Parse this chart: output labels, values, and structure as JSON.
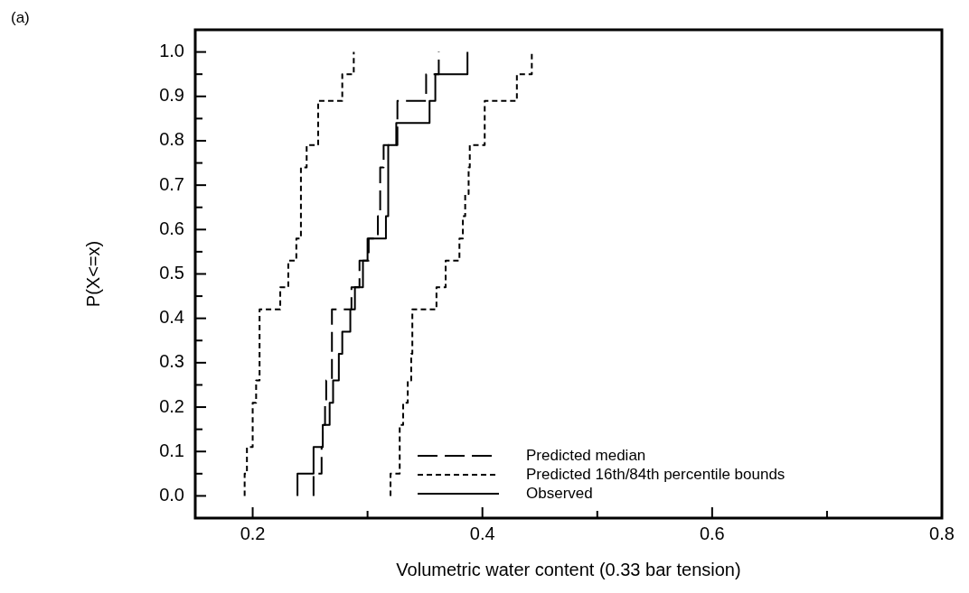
{
  "chart_data": {
    "type": "step",
    "xlabel": "Volumetric water content (0.33 bar tension)",
    "ylabel": "P(X<=x)",
    "annotations": [
      "(a)"
    ],
    "xlim": [
      0.15,
      0.8
    ],
    "xticks": [
      0.2,
      {
        "value": 0.3,
        "label": null
      },
      0.4,
      {
        "value": 0.5,
        "label": null
      },
      0.6,
      {
        "value": 0.7,
        "label": null
      },
      0.8
    ],
    "ylim": [
      -0.05,
      1.05
    ],
    "yticks": [
      {
        "value": 0,
        "label": "0.0"
      },
      {
        "value": 0.05,
        "label": null
      },
      0.1,
      {
        "value": 0.15,
        "label": null
      },
      0.2,
      {
        "value": 0.25,
        "label": null
      },
      0.3,
      {
        "value": 0.35,
        "label": null
      },
      0.4,
      {
        "value": 0.45,
        "label": null
      },
      0.5,
      {
        "value": 0.55,
        "label": null
      },
      0.6,
      {
        "value": 0.65,
        "label": null
      },
      0.7,
      {
        "value": 0.75,
        "label": null
      },
      0.8,
      {
        "value": 0.85,
        "label": null
      },
      0.9,
      {
        "value": 0.95,
        "label": null
      },
      {
        "value": 1,
        "label": "1.0"
      }
    ],
    "grid": false,
    "legend": "bottom right",
    "marker": "none",
    "series": [
      {
        "name": "Predicted median",
        "color": "#000000",
        "line_style": "dashed",
        "x": [
          0.253,
          0.26,
          0.261,
          0.263,
          0.264,
          0.269,
          0.269,
          0.269,
          0.286,
          0.293,
          0.301,
          0.309,
          0.311,
          0.311,
          0.314,
          0.326,
          0.326,
          0.351,
          0.362,
          0.362
        ],
        "values": [
          0,
          0.05,
          0.11,
          0.16,
          0.21,
          0.26,
          0.32,
          0.37,
          0.42,
          0.47,
          0.53,
          0.58,
          0.63,
          0.68,
          0.74,
          0.79,
          0.84,
          0.89,
          0.95,
          1.0
        ]
      },
      {
        "name": "Predicted 16th/84th percentile bounds",
        "color": "#000000",
        "line_style": "dotted",
        "x": [
          0.193,
          0.195,
          0.2,
          0.2,
          0.203,
          0.206,
          0.206,
          0.206,
          0.224,
          0.231,
          0.238,
          0.242,
          0.242,
          0.242,
          0.247,
          0.257,
          0.257,
          0.278,
          0.288,
          0.288
        ],
        "values": [
          0,
          0.05,
          0.11,
          0.16,
          0.21,
          0.26,
          0.32,
          0.37,
          0.42,
          0.47,
          0.53,
          0.58,
          0.63,
          0.68,
          0.74,
          0.79,
          0.84,
          0.89,
          0.95,
          1.0
        ]
      },
      {
        "color": "#000000",
        "line_style": "dotted",
        "x": [
          0.32,
          0.328,
          0.328,
          0.331,
          0.335,
          0.338,
          0.339,
          0.339,
          0.36,
          0.368,
          0.38,
          0.383,
          0.385,
          0.388,
          0.389,
          0.402,
          0.402,
          0.43,
          0.443,
          0.443
        ],
        "values": [
          0,
          0.05,
          0.11,
          0.16,
          0.21,
          0.26,
          0.32,
          0.37,
          0.42,
          0.47,
          0.53,
          0.58,
          0.63,
          0.68,
          0.74,
          0.79,
          0.84,
          0.89,
          0.95,
          1.0
        ]
      },
      {
        "name": "Observed",
        "color": "#000000",
        "line_style": "solid",
        "x": [
          0.239,
          0.253,
          0.261,
          0.267,
          0.27,
          0.275,
          0.278,
          0.285,
          0.289,
          0.296,
          0.3,
          0.316,
          0.318,
          0.318,
          0.318,
          0.325,
          0.354,
          0.359,
          0.387,
          0.387
        ],
        "values": [
          0,
          0.05,
          0.11,
          0.16,
          0.21,
          0.26,
          0.32,
          0.37,
          0.42,
          0.47,
          0.53,
          0.58,
          0.63,
          0.68,
          0.74,
          0.79,
          0.84,
          0.89,
          0.95,
          1.0
        ]
      }
    ]
  }
}
